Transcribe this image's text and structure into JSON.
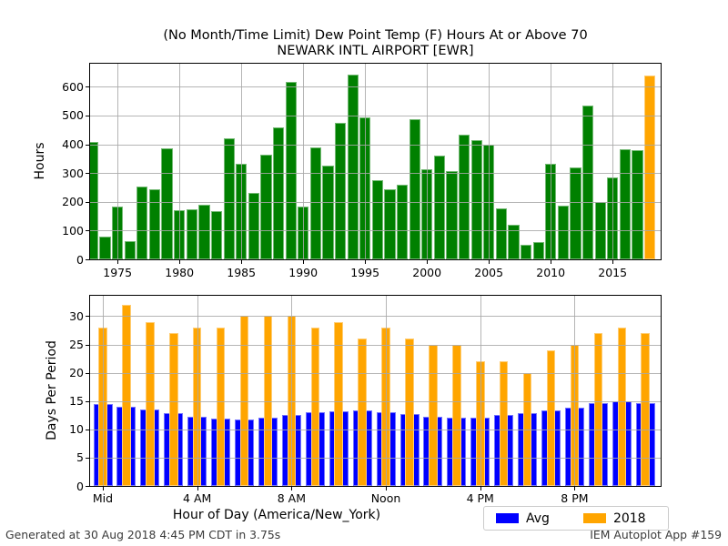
{
  "footer": {
    "generated": "Generated at 30 Aug 2018 4:45 PM CDT in 3.75s",
    "app": "IEM Autoplot App #159"
  },
  "chart_data": [
    {
      "type": "bar",
      "title": "(No Month/Time Limit) Dew Point Temp (F) Hours At or Above 70",
      "subtitle": "NEWARK INTL AIRPORT [EWR]",
      "ylabel": "Hours",
      "x": [
        1973,
        1974,
        1975,
        1976,
        1977,
        1978,
        1979,
        1980,
        1981,
        1982,
        1983,
        1984,
        1985,
        1986,
        1987,
        1988,
        1989,
        1990,
        1991,
        1992,
        1993,
        1994,
        1995,
        1996,
        1997,
        1998,
        1999,
        2000,
        2001,
        2002,
        2003,
        2004,
        2005,
        2006,
        2007,
        2008,
        2009,
        2010,
        2011,
        2012,
        2013,
        2014,
        2015,
        2016,
        2017,
        2018
      ],
      "values": [
        408,
        80,
        183,
        62,
        252,
        244,
        385,
        170,
        173,
        190,
        167,
        420,
        333,
        232,
        365,
        459,
        616,
        185,
        388,
        325,
        474,
        643,
        495,
        274,
        243,
        260,
        488,
        314,
        361,
        307,
        433,
        415,
        398,
        177,
        120,
        51,
        59,
        332,
        187,
        321,
        535,
        200,
        284,
        384,
        379,
        640
      ],
      "bar_color": "#008000",
      "highlight_year": 2018,
      "highlight_color": "#ffa500",
      "yticks": [
        0,
        100,
        200,
        300,
        400,
        500,
        600
      ],
      "ylim": [
        0,
        680
      ],
      "xticks": [
        1975,
        1980,
        1985,
        1990,
        1995,
        2000,
        2005,
        2010,
        2015
      ],
      "xlim": [
        1972.78,
        2018.88
      ],
      "grid": true
    },
    {
      "type": "bar",
      "x": [
        0,
        1,
        2,
        3,
        4,
        5,
        6,
        7,
        8,
        9,
        10,
        11,
        12,
        13,
        14,
        15,
        16,
        17,
        18,
        19,
        20,
        21,
        22,
        23
      ],
      "series": [
        {
          "name": "Avg",
          "color": "#0000ff",
          "values": [
            14.5,
            14.0,
            13.5,
            12.8,
            12.2,
            11.9,
            11.8,
            12.1,
            12.5,
            13.0,
            13.2,
            13.3,
            13.0,
            12.7,
            12.3,
            12.0,
            12.0,
            12.6,
            12.8,
            13.3,
            13.9,
            14.6,
            14.9,
            14.7
          ]
        },
        {
          "name": "2018",
          "color": "#ffa500",
          "values": [
            28,
            32,
            29,
            27,
            28,
            28,
            30,
            30,
            30,
            28,
            29,
            26,
            28,
            26,
            25,
            25,
            22,
            22,
            20,
            24,
            25,
            27,
            28,
            27
          ]
        }
      ],
      "ylabel": "Days Per Period",
      "xlabel": "Hour of Day (America/New_York)",
      "yticks": [
        0,
        5,
        10,
        15,
        20,
        25,
        30
      ],
      "ylim": [
        0,
        33.6
      ],
      "xticks": [
        0,
        4,
        8,
        12,
        16,
        20
      ],
      "xtick_labels": [
        "Mid",
        "4 AM",
        "8 AM",
        "Noon",
        "4 PM",
        "8 PM"
      ],
      "xlim": [
        -0.54,
        23.65
      ],
      "grid": true,
      "legend": {
        "position": "lower-right",
        "items": [
          {
            "label": "Avg",
            "color": "#0000ff"
          },
          {
            "label": "2018",
            "color": "#ffa500"
          }
        ]
      }
    }
  ]
}
